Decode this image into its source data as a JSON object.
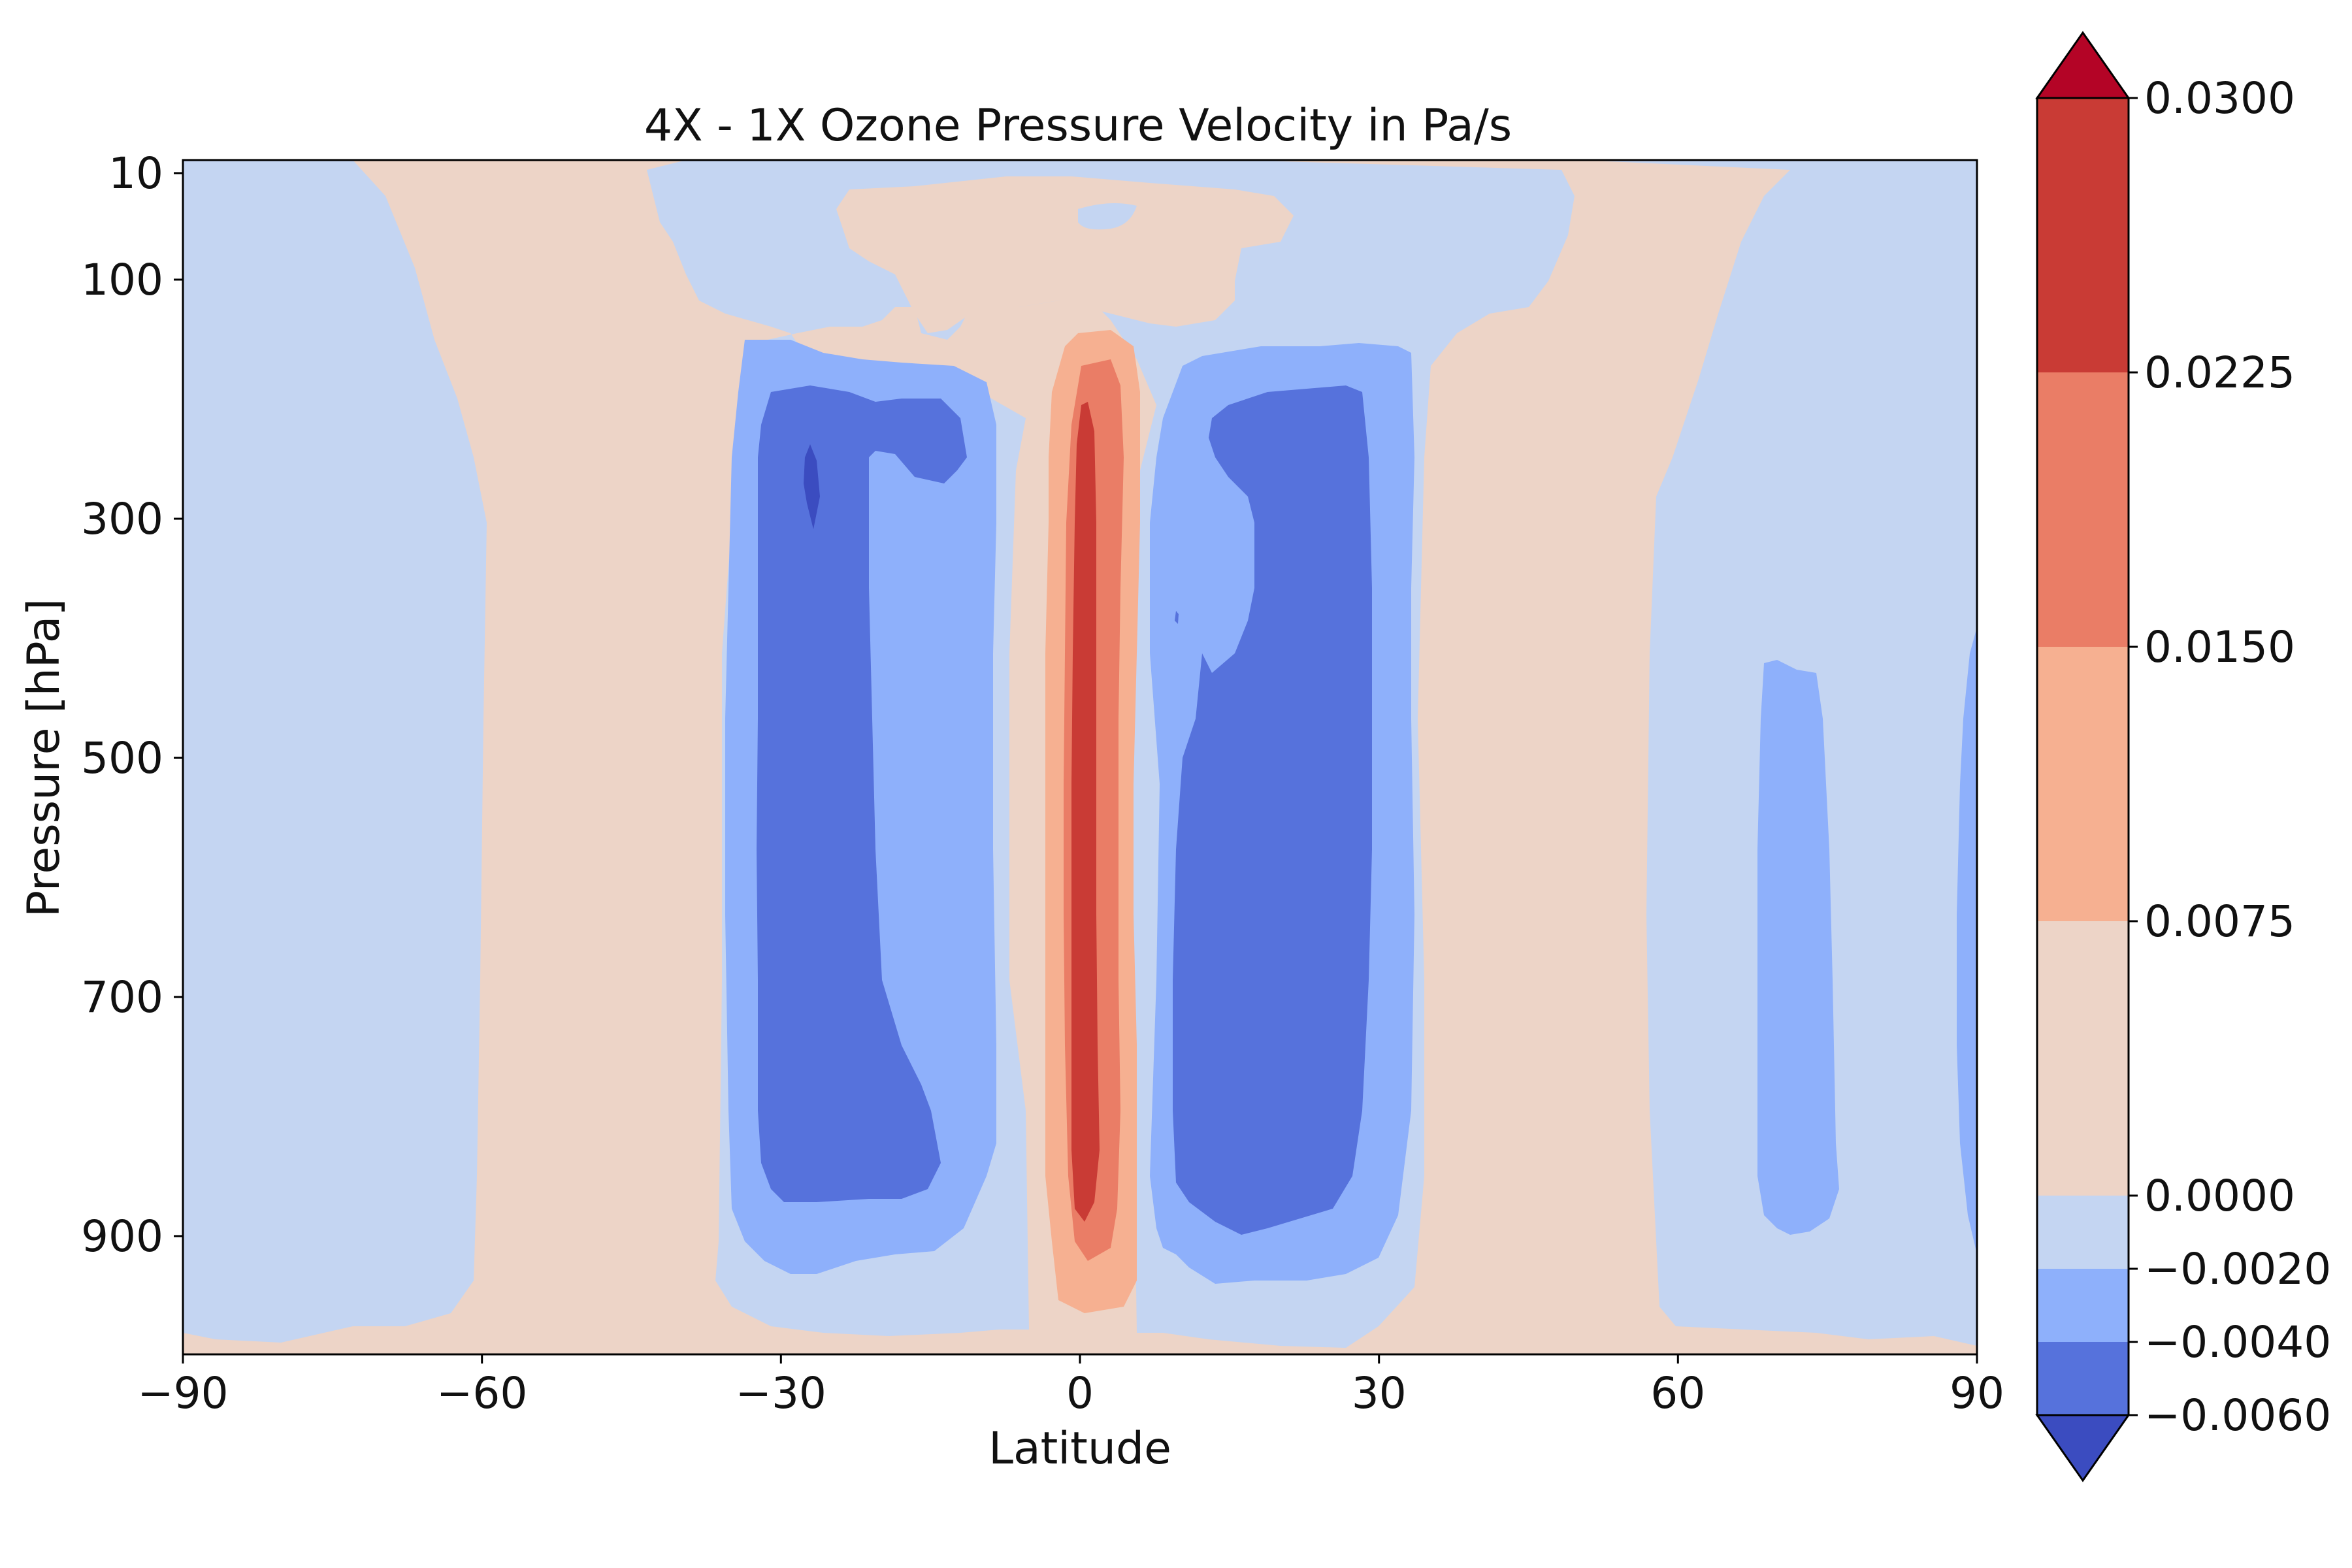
{
  "chart_data": {
    "type": "heatmap",
    "subtype": "filled-contour",
    "title": "4X - 1X Ozone Pressure Velocity in Pa/s",
    "xlabel": "Latitude",
    "ylabel": "Pressure [hPa]",
    "xlim": [
      -90,
      90
    ],
    "ylim": [
      1000,
      10
    ],
    "y_scale": "log (inverted)",
    "x_ticks": [
      "−90",
      "−60",
      "−30",
      "0",
      "30",
      "60",
      "90"
    ],
    "y_ticks": [
      "10",
      "100",
      "300",
      "500",
      "700",
      "900"
    ],
    "colormap": "coolwarm",
    "colorbar": {
      "levels": [
        -0.006,
        -0.004,
        -0.002,
        0.0,
        0.0075,
        0.015,
        0.0225,
        0.03
      ],
      "tick_labels": [
        "−0.0060",
        "−0.0040",
        "−0.0020",
        "0.0000",
        "0.0075",
        "0.0150",
        "0.0225",
        "0.0300"
      ],
      "colors": [
        "#5672dc",
        "#8eb0fb",
        "#c4d5f2",
        "#edd4c7",
        "#f6b091",
        "#ea7d66",
        "#c93b35"
      ],
      "under_color": "#3b4cc0",
      "over_color": "#b40426",
      "extend": "both"
    },
    "background_color": "#edd4c7",
    "regions": [
      {
        "level": "-0.0020 to 0.0000",
        "color": "#c4d5f2",
        "desc": "south polar column",
        "lat": [
          -90,
          -61
        ],
        "pressure": [
          10,
          1000
        ]
      },
      {
        "level": "-0.0020 to 0.0000",
        "color": "#c4d5f2",
        "desc": "north polar column",
        "lat": [
          54,
          90
        ],
        "pressure": [
          10,
          990
        ]
      },
      {
        "level": "-0.0020 to 0.0000",
        "color": "#c4d5f2",
        "desc": "subtropical envelope",
        "lat": [
          -40,
          38
        ],
        "pressure": [
          20,
          1000
        ]
      },
      {
        "level": "-0.0040 to -0.0020",
        "color": "#8eb0fb",
        "desc": "southern subtropical band",
        "lat": [
          -37,
          -9
        ],
        "pressure": [
          200,
          950
        ]
      },
      {
        "level": "-0.0040 to -0.0020",
        "color": "#8eb0fb",
        "desc": "northern subtropical band",
        "lat": [
          8,
          35
        ],
        "pressure": [
          200,
          960
        ]
      },
      {
        "level": "-0.0040 to -0.0020",
        "color": "#8eb0fb",
        "desc": "north high-latitude tongue",
        "lat": [
          68,
          77
        ],
        "pressure": [
          420,
          910
        ]
      },
      {
        "level": "-0.0060 to -0.0040",
        "color": "#5672dc",
        "desc": "southern core",
        "lat": [
          -33,
          -12
        ],
        "pressure": [
          230,
          870
        ]
      },
      {
        "level": "-0.0060 to -0.0040",
        "color": "#5672dc",
        "desc": "northern core",
        "lat": [
          9,
          30
        ],
        "pressure": [
          230,
          910
        ]
      },
      {
        "level": "below -0.0060",
        "color": "#3b4cc0",
        "desc": "southern minimum",
        "lat": [
          -28,
          -27
        ],
        "pressure": [
          250,
          310
        ]
      },
      {
        "level": "0.0000 to 0.0075",
        "color": "#edd4c7",
        "desc": "equatorial upper cap",
        "lat": [
          -24,
          23
        ],
        "pressure": [
          20,
          160
        ]
      },
      {
        "level": "0.0075 to 0.0150",
        "color": "#f6b091",
        "desc": "equatorial updraft outer",
        "lat": [
          -4,
          4
        ],
        "pressure": [
          160,
          950
        ]
      },
      {
        "level": "0.0150 to 0.0225",
        "color": "#ea7d66",
        "desc": "equatorial updraft middle",
        "lat": [
          -2.5,
          2.5
        ],
        "pressure": [
          180,
          920
        ]
      },
      {
        "level": "0.0225 to 0.0300",
        "color": "#c93b35",
        "desc": "equatorial updraft core",
        "lat": [
          -1.5,
          1.5
        ],
        "pressure": [
          210,
          890
        ]
      }
    ]
  }
}
